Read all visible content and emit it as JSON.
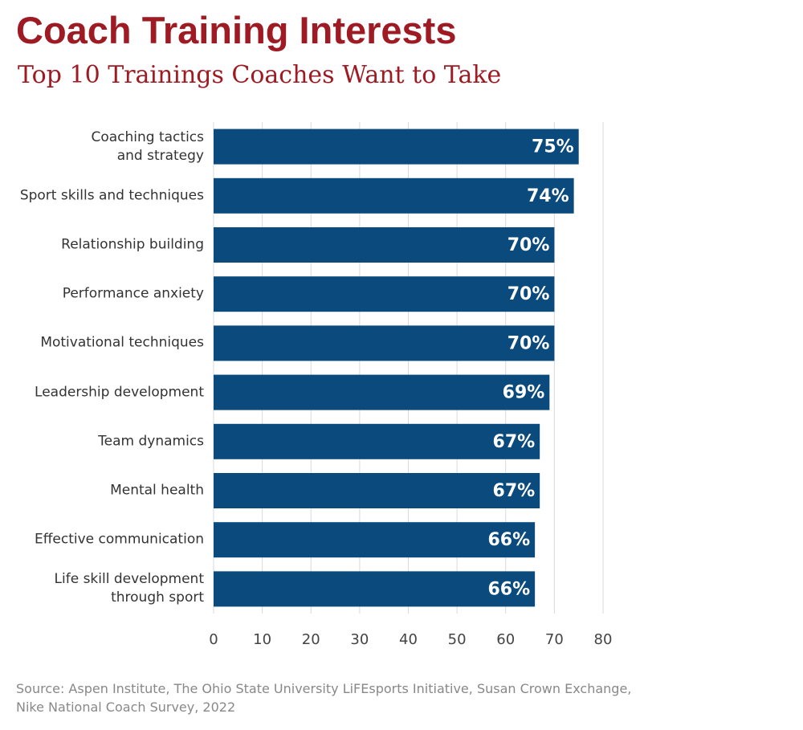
{
  "chart_data": {
    "type": "hbar",
    "title": "Coach Training Interests",
    "subtitle": "Top 10 Trainings Coaches Want to Take",
    "categories": [
      "Coaching tactics\nand strategy",
      "Sport skills and techniques",
      "Relationship building",
      "Performance anxiety",
      "Motivational techniques",
      "Leadership development",
      "Team dynamics",
      "Mental health",
      "Effective communication",
      "Life skill development\nthrough sport"
    ],
    "values": [
      75,
      74,
      70,
      70,
      70,
      69,
      67,
      67,
      66,
      66
    ],
    "value_labels": [
      "75%",
      "74%",
      "70%",
      "70%",
      "70%",
      "69%",
      "67%",
      "67%",
      "66%",
      "66%"
    ],
    "color": "#0b4a7c",
    "xlim": [
      0,
      80
    ],
    "xticks": [
      0,
      10,
      20,
      30,
      40,
      50,
      60,
      70,
      80
    ],
    "grid": true,
    "source": "Source: Aspen Institute, The Ohio State University LiFEsports Initiative, Susan Crown Exchange,\nNike National Coach Survey, 2022"
  }
}
